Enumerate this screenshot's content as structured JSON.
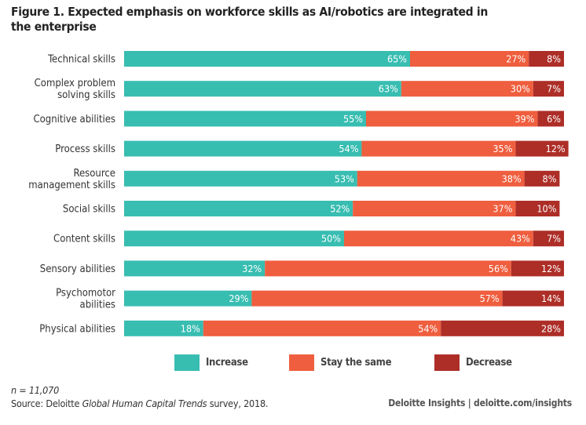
{
  "chart_data": {
    "type": "bar",
    "orientation": "horizontal",
    "stacked": true,
    "title": "Figure 1. Expected emphasis on workforce skills as AI/robotics are integrated in the enterprise",
    "categories": [
      "Technical skills",
      "Complex problem solving skills",
      "Cognitive abilities",
      "Process skills",
      "Resource management skills",
      "Social skills",
      "Content skills",
      "Sensory abilities",
      "Psychomotor abilities",
      "Physical abilities"
    ],
    "category_lines": [
      [
        "Technical skills"
      ],
      [
        "Complex problem",
        "solving skills"
      ],
      [
        "Cognitive abilities"
      ],
      [
        "Process skills"
      ],
      [
        "Resource",
        "management skills"
      ],
      [
        "Social skills"
      ],
      [
        "Content skills"
      ],
      [
        "Sensory abilities"
      ],
      [
        "Psychomotor",
        "abilities"
      ],
      [
        "Physical abilities"
      ]
    ],
    "series": [
      {
        "name": "Increase",
        "color": "#38bdb1",
        "values": [
          65,
          63,
          55,
          54,
          53,
          52,
          50,
          32,
          29,
          18
        ]
      },
      {
        "name": "Stay the same",
        "color": "#ef5e3e",
        "values": [
          27,
          30,
          39,
          35,
          38,
          37,
          43,
          56,
          57,
          54
        ]
      },
      {
        "name": "Decrease",
        "color": "#ad2e27",
        "values": [
          8,
          7,
          6,
          12,
          8,
          10,
          7,
          12,
          14,
          28
        ]
      }
    ],
    "value_format": "%",
    "xlim": [
      0,
      100
    ],
    "grid": false,
    "legend_position": "bottom"
  },
  "footer": {
    "n": "n = 11,070",
    "source_prefix": "Source: Deloitte ",
    "source_italic": "Global Human Capital Trends",
    "source_suffix": " survey, 2018.",
    "credit": "Deloitte Insights | deloitte.com/insights"
  }
}
